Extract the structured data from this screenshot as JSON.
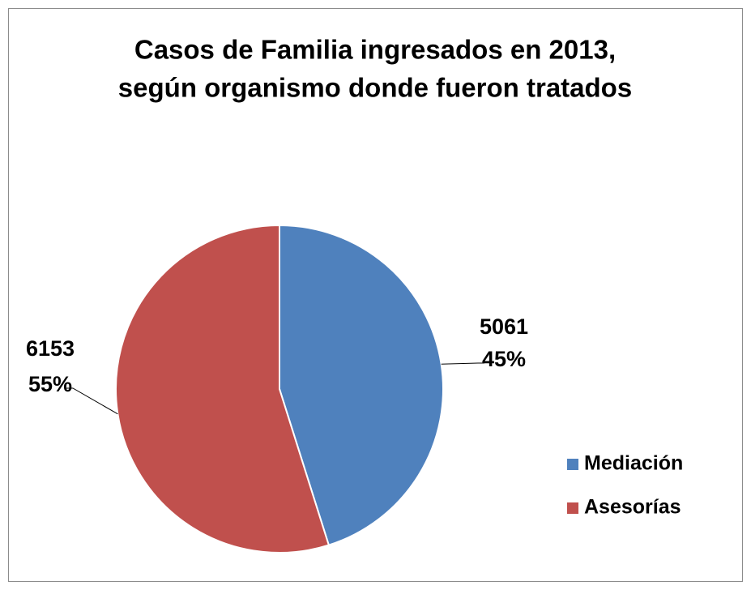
{
  "chart_data": {
    "type": "pie",
    "title": [
      "Casos de Familia ingresados en 2013,",
      "según organismo donde fueron tratados"
    ],
    "categories": [
      "Mediación",
      "Asesorías"
    ],
    "values": [
      5061,
      6153
    ],
    "percent_labels": [
      "45%",
      "55%"
    ],
    "colors": [
      "#4f81bd",
      "#c0504d"
    ],
    "legend": "right"
  }
}
